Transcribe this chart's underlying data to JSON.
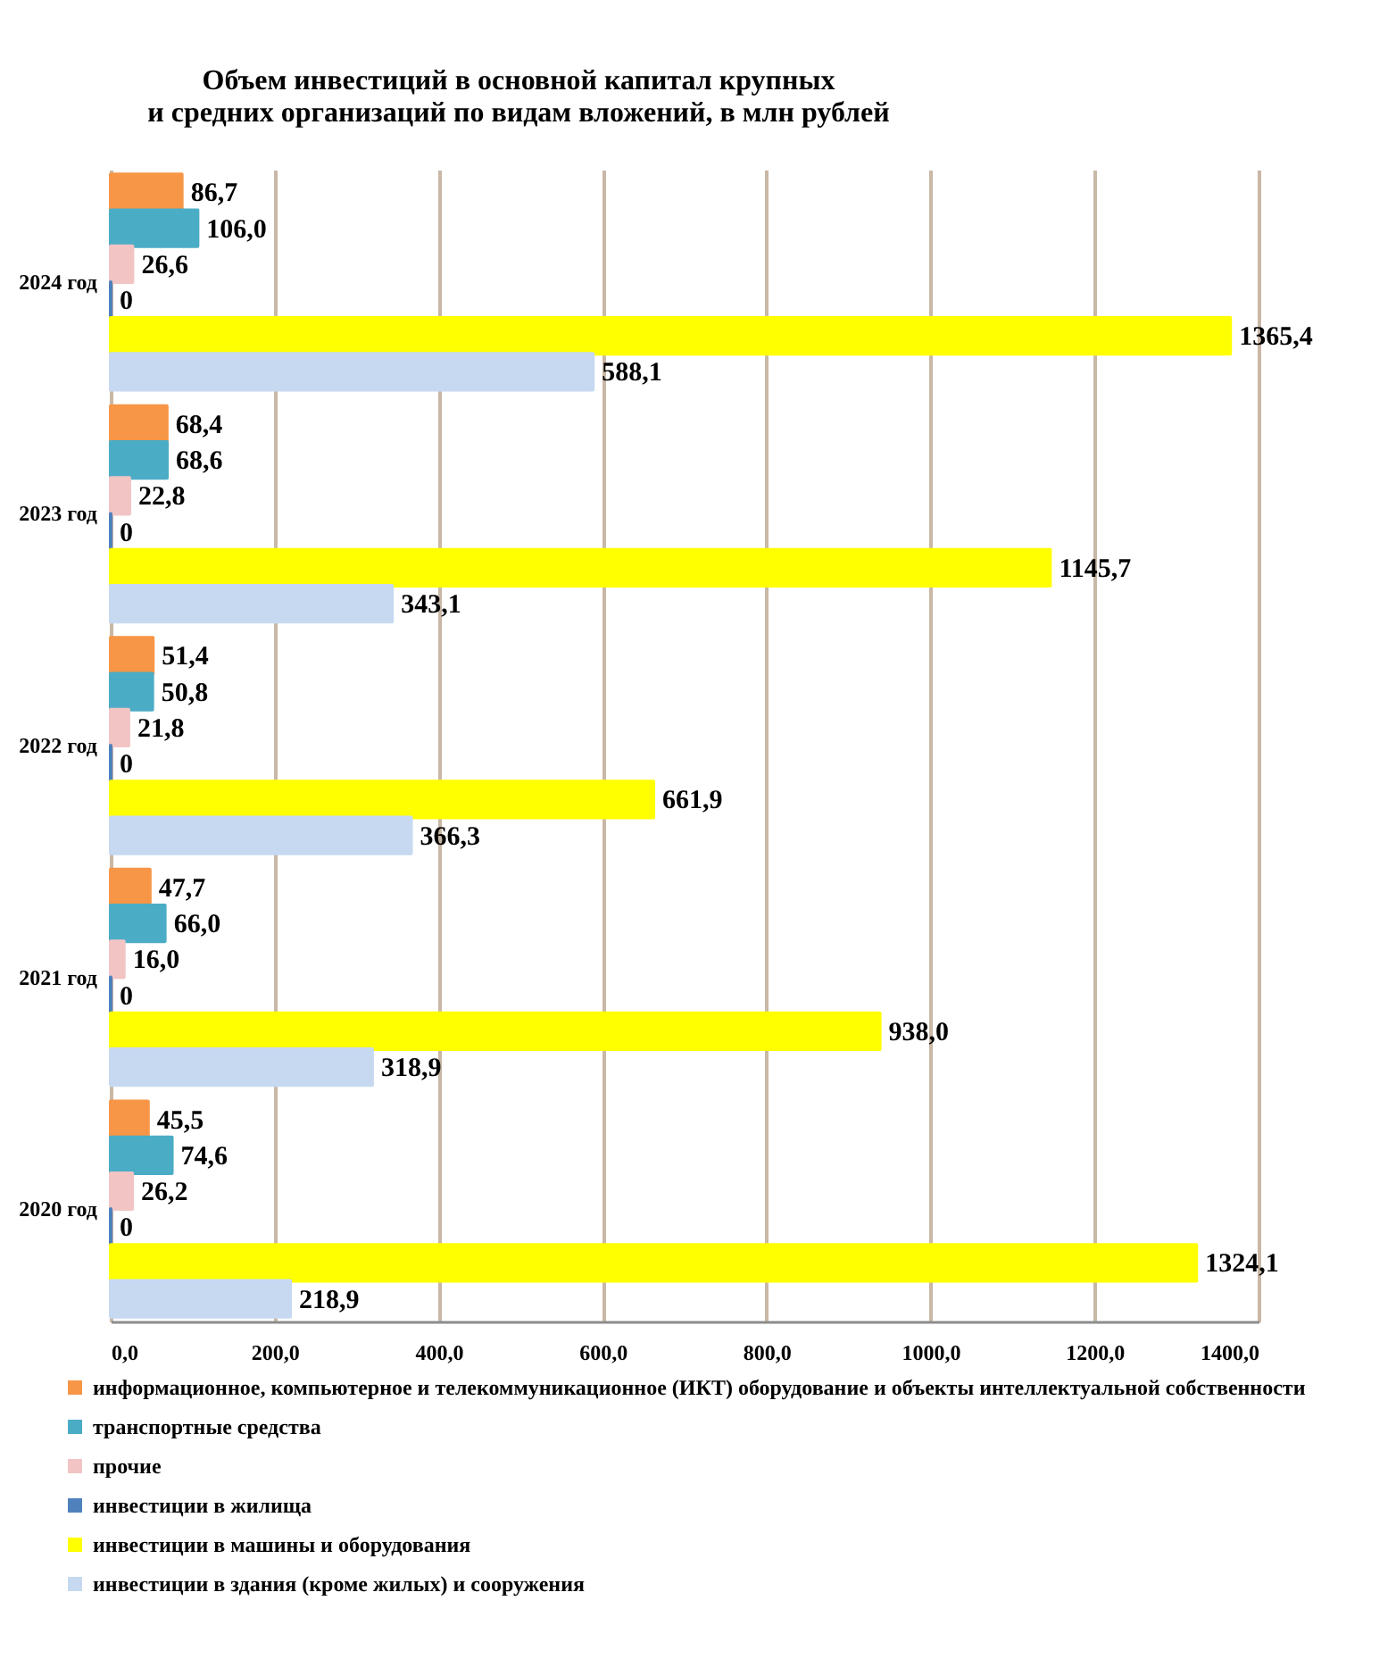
{
  "chart_data": {
    "type": "bar",
    "orientation": "horizontal",
    "title": "Объем инвестиций в основной капитал крупных\nи средних организаций по видам вложений, в млн рублей",
    "categories": [
      "2024 год",
      "2023 год",
      "2022 год",
      "2021 год",
      "2020 год"
    ],
    "series": [
      {
        "name": "информационное, компьютерное и телекоммуникационное (ИКТ) оборудование и объекты интеллектуальной собственности",
        "color": "#f79646",
        "values": [
          86.7,
          68.4,
          51.4,
          47.7,
          45.5
        ],
        "value_labels": [
          "86,7",
          "68,4",
          "51,4",
          "47,7",
          "45,5"
        ]
      },
      {
        "name": "транспортные средства",
        "color": "#4bacc6",
        "values": [
          106.0,
          68.6,
          50.8,
          66.0,
          74.6
        ],
        "value_labels": [
          "106,0",
          "68,6",
          "50,8",
          "66,0",
          "74,6"
        ]
      },
      {
        "name": "прочие",
        "color": "#f2c4c4",
        "values": [
          26.6,
          22.8,
          21.8,
          16.0,
          26.2
        ],
        "value_labels": [
          "26,6",
          "22,8",
          "21,8",
          "16,0",
          "26,2"
        ]
      },
      {
        "name": "инвестиции в жилища",
        "color": "#4f81bd",
        "values": [
          0,
          0,
          0,
          0,
          0
        ],
        "value_labels": [
          "0",
          "0",
          "0",
          "0",
          "0"
        ]
      },
      {
        "name": "инвестиции в машины и оборудования",
        "color": "#ffff00",
        "values": [
          1365.4,
          1145.7,
          661.9,
          938.0,
          1324.1
        ],
        "value_labels": [
          "1365,4",
          "1145,7",
          "661,9",
          "938,0",
          "1324,1"
        ]
      },
      {
        "name": "инвестиции в здания (кроме жилых) и сооружения",
        "color": "#c6d9f1",
        "values": [
          588.1,
          343.1,
          366.3,
          318.9,
          218.9
        ],
        "value_labels": [
          "588,1",
          "343,1",
          "366,3",
          "318,9",
          "218,9"
        ]
      }
    ],
    "xlim": [
      0,
      1400
    ],
    "xticks": [
      {
        "value": 0,
        "label": "0,0"
      },
      {
        "value": 200,
        "label": "200,0"
      },
      {
        "value": 400,
        "label": "400,0"
      },
      {
        "value": 600,
        "label": "600,0"
      },
      {
        "value": 800,
        "label": "800,0"
      },
      {
        "value": 1000,
        "label": "1000,0"
      },
      {
        "value": 1200,
        "label": "1200,0"
      },
      {
        "value": 1400,
        "label": "1400,0"
      }
    ],
    "grid": "x",
    "legend": "bottom"
  }
}
